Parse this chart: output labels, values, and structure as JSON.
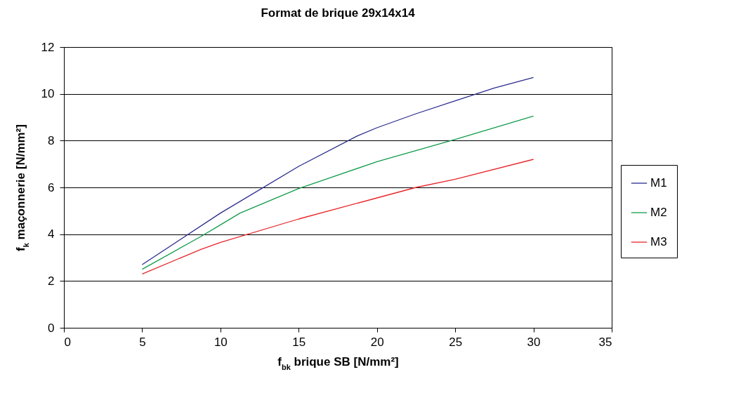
{
  "chart_data": {
    "type": "line",
    "title": "Format de brique 29x14x14",
    "xlabel": "f$_{bk}$ brique SB [N/mm²]",
    "ylabel": "f$_{k}$ maçonnerie [N/mm²]",
    "xlim": [
      0,
      35
    ],
    "xticks": [
      0,
      5,
      10,
      15,
      20,
      25,
      30,
      35
    ],
    "ylim": [
      0,
      12
    ],
    "yticks": [
      0,
      2,
      4,
      6,
      8,
      10,
      12
    ],
    "grid": "y",
    "legend": "right",
    "marker": "none",
    "line_style": "solid",
    "series": [
      {
        "name": "M1",
        "color": "#2b2b8f",
        "x": [
          5,
          10,
          15,
          18.75,
          20,
          22.5,
          25,
          27.5,
          30
        ],
        "values": [
          2.7,
          4.9,
          6.9,
          8.2,
          8.55,
          9.15,
          9.7,
          10.25,
          10.7
        ]
      },
      {
        "name": "M2",
        "color": "#119b4a",
        "x": [
          5,
          8.75,
          10,
          11.25,
          15,
          20,
          25,
          30
        ],
        "values": [
          2.5,
          3.9,
          4.4,
          4.9,
          5.95,
          7.1,
          8.05,
          9.05
        ]
      },
      {
        "name": "M3",
        "color": "#e8262b",
        "x": [
          5,
          8.75,
          10,
          15,
          20,
          22.5,
          25,
          30
        ],
        "values": [
          2.3,
          3.35,
          3.65,
          4.65,
          5.55,
          6.0,
          6.35,
          7.2
        ]
      }
    ]
  }
}
